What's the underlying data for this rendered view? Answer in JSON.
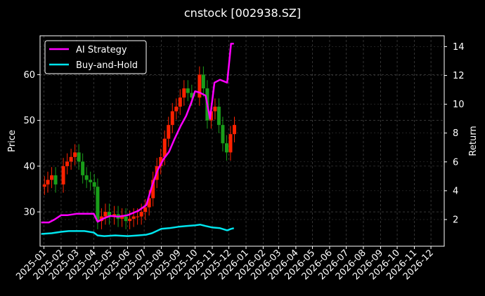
{
  "chart_data": {
    "type": "line",
    "title": "cnstock [002938.SZ]",
    "ylabel": "Price",
    "y2label": "Return",
    "ylim": [
      22.5,
      68.5
    ],
    "y2lim": [
      0.15,
      14.75
    ],
    "xlim": [
      "2024-12-25",
      "2026-12-25"
    ],
    "grid": true,
    "legend_position": "top-left",
    "yticks": [
      30,
      40,
      50,
      60
    ],
    "y2ticks": [
      2,
      4,
      6,
      8,
      10,
      12,
      14
    ],
    "xticks": [
      "2025-01",
      "2025-02",
      "2025-03",
      "2025-04",
      "2025-05",
      "2025-06",
      "2025-07",
      "2025-08",
      "2025-09",
      "2025-10",
      "2025-11",
      "2025-12",
      "2026-01",
      "2026-02",
      "2026-03",
      "2026-04",
      "2026-05",
      "2026-06",
      "2026-07",
      "2026-08",
      "2026-09",
      "2026-10",
      "2026-11",
      "2026-12"
    ],
    "candlestick_close": {
      "dates": [
        "2025-01-02",
        "2025-01-08",
        "2025-01-15",
        "2025-01-22",
        "2025-02-05",
        "2025-02-12",
        "2025-02-19",
        "2025-02-26",
        "2025-03-05",
        "2025-03-12",
        "2025-03-19",
        "2025-03-26",
        "2025-04-02",
        "2025-04-08",
        "2025-04-15",
        "2025-04-22",
        "2025-04-29",
        "2025-05-08",
        "2025-05-15",
        "2025-05-22",
        "2025-05-29",
        "2025-06-05",
        "2025-06-12",
        "2025-06-19",
        "2025-06-26",
        "2025-07-03",
        "2025-07-10",
        "2025-07-17",
        "2025-07-24",
        "2025-07-31",
        "2025-08-07",
        "2025-08-14",
        "2025-08-21",
        "2025-08-28",
        "2025-09-04",
        "2025-09-11",
        "2025-09-18",
        "2025-09-25",
        "2025-10-09",
        "2025-10-16",
        "2025-10-23",
        "2025-10-30",
        "2025-11-06",
        "2025-11-13",
        "2025-11-20",
        "2025-11-27",
        "2025-12-04",
        "2025-12-11"
      ],
      "values": [
        36,
        37,
        38,
        36,
        40,
        41,
        42,
        43,
        41,
        38,
        37,
        36.5,
        35.5,
        28,
        29,
        30,
        29,
        29.5,
        28.5,
        29,
        28,
        28.5,
        29,
        29,
        30,
        31,
        33,
        37,
        40,
        42,
        46,
        49,
        52,
        53,
        55,
        57,
        56,
        55,
        60,
        57,
        50,
        52,
        53,
        49,
        45,
        43,
        47,
        49
      ]
    },
    "series": [
      {
        "name": "AI Strategy",
        "color": "#ff00ff",
        "axis": "right",
        "dates": [
          "2024-12-27",
          "2025-01-10",
          "2025-01-20",
          "2025-02-01",
          "2025-02-12",
          "2025-03-01",
          "2025-03-15",
          "2025-04-01",
          "2025-04-08",
          "2025-04-20",
          "2025-05-01",
          "2025-05-15",
          "2025-06-01",
          "2025-06-20",
          "2025-07-05",
          "2025-07-15",
          "2025-07-25",
          "2025-08-05",
          "2025-08-15",
          "2025-08-25",
          "2025-09-05",
          "2025-09-15",
          "2025-09-25",
          "2025-10-01",
          "2025-10-10",
          "2025-10-20",
          "2025-10-28",
          "2025-11-05",
          "2025-11-15",
          "2025-11-28",
          "2025-12-05",
          "2025-12-10"
        ],
        "values": [
          1.8,
          1.8,
          2.0,
          2.3,
          2.3,
          2.4,
          2.4,
          2.4,
          1.85,
          2.1,
          2.25,
          2.2,
          2.3,
          2.6,
          3.0,
          4.3,
          5.4,
          6.2,
          6.7,
          7.6,
          8.5,
          9.2,
          10.2,
          10.9,
          10.8,
          10.6,
          9.0,
          11.5,
          11.7,
          11.5,
          14.2,
          14.2
        ]
      },
      {
        "name": "Buy-and-Hold",
        "color": "#00e5ee",
        "axis": "right",
        "dates": [
          "2024-12-27",
          "2025-01-15",
          "2025-02-01",
          "2025-02-15",
          "2025-03-01",
          "2025-03-15",
          "2025-04-01",
          "2025-04-08",
          "2025-04-20",
          "2025-05-10",
          "2025-06-01",
          "2025-06-20",
          "2025-07-05",
          "2025-07-15",
          "2025-08-01",
          "2025-08-15",
          "2025-09-01",
          "2025-09-15",
          "2025-10-01",
          "2025-10-10",
          "2025-10-20",
          "2025-11-01",
          "2025-11-15",
          "2025-11-28",
          "2025-12-05",
          "2025-12-10"
        ],
        "values": [
          1.0,
          1.05,
          1.15,
          1.2,
          1.2,
          1.2,
          1.1,
          0.9,
          0.85,
          0.9,
          0.85,
          0.9,
          0.95,
          1.05,
          1.35,
          1.4,
          1.5,
          1.55,
          1.6,
          1.65,
          1.55,
          1.45,
          1.4,
          1.25,
          1.35,
          1.4
        ]
      }
    ]
  }
}
